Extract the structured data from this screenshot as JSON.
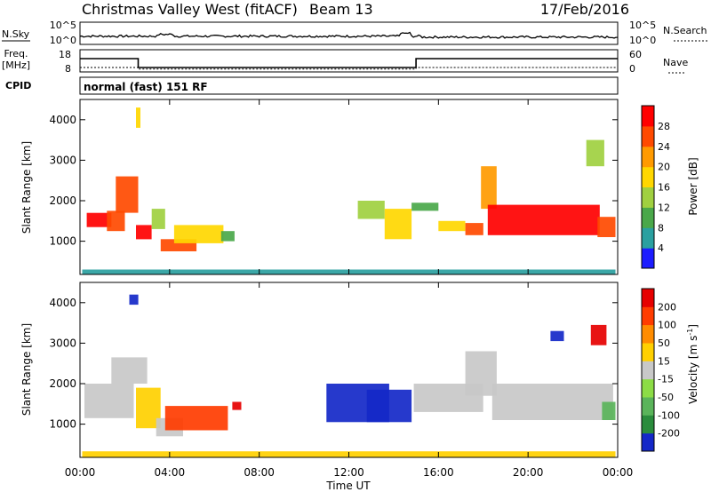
{
  "header": {
    "title": "Christmas Valley West (fitACF)",
    "beam": "Beam 13",
    "date": "17/Feb/2016"
  },
  "strip_labels": {
    "nsky": "N.Sky",
    "nsky_ticks": [
      "10^5",
      "10^0"
    ],
    "nsearch": "N.Search",
    "nsearch_ticks": [
      "10^5",
      "10^0"
    ],
    "freq_lines": [
      "Freq.",
      "[MHz]"
    ],
    "freq_ticks": [
      "18",
      "8"
    ],
    "nave": "Nave",
    "nave_ticks": [
      "60",
      "0"
    ],
    "cpid": "CPID",
    "cpid_text": "normal (fast) 151 RF"
  },
  "chart_data": [
    {
      "type": "line",
      "name_left": "N.Sky",
      "name_right": "N.Search",
      "x_range_hours": [
        0,
        24
      ],
      "scale": "log",
      "ylim_left": [
        "10^0",
        "10^5"
      ],
      "ylim_right": [
        "10^0",
        "10^5"
      ]
    },
    {
      "type": "line",
      "ylabel_left": "Freq. [MHz]",
      "ylabel_right": "Nave",
      "ylim_left": [
        8,
        18
      ],
      "ylim_right": [
        0,
        60
      ],
      "freq_steps": [
        {
          "x": 0,
          "y": 14
        },
        {
          "x": 2.6,
          "y": 14
        },
        {
          "x": 2.6,
          "y": 10
        },
        {
          "x": 15.0,
          "y": 10
        },
        {
          "x": 15.0,
          "y": 14
        },
        {
          "x": 24,
          "y": 14
        }
      ],
      "nave_steps": [
        {
          "x": 0,
          "y": 12
        },
        {
          "x": 2.6,
          "y": 12
        },
        {
          "x": 2.6,
          "y": 8
        },
        {
          "x": 15.0,
          "y": 8
        },
        {
          "x": 15.0,
          "y": 12
        },
        {
          "x": 24,
          "y": 12
        }
      ]
    },
    {
      "type": "heatmap",
      "title": "Power",
      "ylabel": "Slant Range [km]",
      "yticks": [
        "1000",
        "2000",
        "3000",
        "4000"
      ],
      "ylim": [
        180,
        4500
      ],
      "xlim": [
        0,
        24
      ],
      "colorbar_label": "Power [dB]",
      "colorbar_ticks": [
        "28",
        "24",
        "20",
        "16",
        "12",
        "8",
        "4"
      ],
      "colors": [
        "#1c1cff",
        "#2aa0a0",
        "#4aa84a",
        "#a0d040",
        "#ffd700",
        "#ff9a00",
        "#ff4a00",
        "#ff0000"
      ],
      "regions": [
        {
          "x0": 0.3,
          "x1": 1.4,
          "y0": 1350,
          "y1": 1700,
          "c": 7
        },
        {
          "x0": 1.2,
          "x1": 2.0,
          "y0": 1250,
          "y1": 1750,
          "c": 6
        },
        {
          "x0": 1.6,
          "x1": 2.6,
          "y0": 1700,
          "y1": 2600,
          "c": 6
        },
        {
          "x0": 2.5,
          "x1": 3.2,
          "y0": 1050,
          "y1": 1400,
          "c": 7
        },
        {
          "x0": 3.2,
          "x1": 3.8,
          "y0": 1300,
          "y1": 1800,
          "c": 3
        },
        {
          "x0": 3.6,
          "x1": 5.2,
          "y0": 750,
          "y1": 1050,
          "c": 6
        },
        {
          "x0": 4.2,
          "x1": 6.4,
          "y0": 950,
          "y1": 1400,
          "c": 4
        },
        {
          "x0": 6.3,
          "x1": 6.9,
          "y0": 1000,
          "y1": 1250,
          "c": 2
        },
        {
          "x0": 12.4,
          "x1": 13.6,
          "y0": 1550,
          "y1": 2000,
          "c": 3
        },
        {
          "x0": 13.6,
          "x1": 14.8,
          "y0": 1050,
          "y1": 1800,
          "c": 4
        },
        {
          "x0": 14.8,
          "x1": 16.0,
          "y0": 1750,
          "y1": 1950,
          "c": 2
        },
        {
          "x0": 16.0,
          "x1": 17.2,
          "y0": 1250,
          "y1": 1500,
          "c": 4
        },
        {
          "x0": 17.2,
          "x1": 18.0,
          "y0": 1150,
          "y1": 1450,
          "c": 6
        },
        {
          "x0": 17.9,
          "x1": 18.6,
          "y0": 1800,
          "y1": 2850,
          "c": 5
        },
        {
          "x0": 18.2,
          "x1": 23.2,
          "y0": 1150,
          "y1": 1900,
          "c": 7
        },
        {
          "x0": 23.1,
          "x1": 23.9,
          "y0": 1100,
          "y1": 1600,
          "c": 6
        },
        {
          "x0": 22.6,
          "x1": 23.4,
          "y0": 2850,
          "y1": 3500,
          "c": 3
        },
        {
          "x0": 2.5,
          "x1": 2.7,
          "y0": 3800,
          "y1": 4300,
          "c": 4
        },
        {
          "x0": 0.1,
          "x1": 23.9,
          "y0": 180,
          "y1": 300,
          "c": 1
        }
      ]
    },
    {
      "type": "heatmap",
      "title": "Velocity",
      "ylabel": "Slant Range [km]",
      "yticks": [
        "1000",
        "2000",
        "3000",
        "4000"
      ],
      "ylim": [
        180,
        4500
      ],
      "xlim": [
        0,
        24
      ],
      "xlabel": "Time UT",
      "xticks": [
        "00:00",
        "04:00",
        "08:00",
        "12:00",
        "16:00",
        "20:00",
        "00:00"
      ],
      "colorbar_label": "Velocity [m s",
      "colorbar_sup": "-1",
      "colorbar_label_tail": "]",
      "colorbar_ticks": [
        "200",
        "100",
        "50",
        "15",
        "-15",
        "-50",
        "-100",
        "-200"
      ],
      "colors": [
        "#1428c8",
        "#2a8c3c",
        "#5ab45a",
        "#8cdc46",
        "#c8c8c8",
        "#ffd000",
        "#ff8c00",
        "#ff3c00",
        "#e60000"
      ],
      "regions": [
        {
          "x0": 0.2,
          "x1": 2.4,
          "y0": 1150,
          "y1": 2000,
          "c": 4
        },
        {
          "x0": 1.4,
          "x1": 3.0,
          "y0": 2000,
          "y1": 2650,
          "c": 4
        },
        {
          "x0": 2.5,
          "x1": 3.6,
          "y0": 900,
          "y1": 1900,
          "c": 5
        },
        {
          "x0": 3.4,
          "x1": 4.6,
          "y0": 700,
          "y1": 1150,
          "c": 4
        },
        {
          "x0": 3.8,
          "x1": 6.6,
          "y0": 850,
          "y1": 1450,
          "c": 7
        },
        {
          "x0": 6.8,
          "x1": 7.2,
          "y0": 1350,
          "y1": 1550,
          "c": 8
        },
        {
          "x0": 11.0,
          "x1": 13.8,
          "y0": 1050,
          "y1": 2000,
          "c": 0
        },
        {
          "x0": 12.8,
          "x1": 14.8,
          "y0": 1050,
          "y1": 1850,
          "c": 0
        },
        {
          "x0": 14.9,
          "x1": 18.0,
          "y0": 1300,
          "y1": 2000,
          "c": 4
        },
        {
          "x0": 17.2,
          "x1": 18.6,
          "y0": 1700,
          "y1": 2800,
          "c": 4
        },
        {
          "x0": 18.4,
          "x1": 23.8,
          "y0": 1100,
          "y1": 2000,
          "c": 4
        },
        {
          "x0": 23.3,
          "x1": 23.9,
          "y0": 1100,
          "y1": 1550,
          "c": 2
        },
        {
          "x0": 22.8,
          "x1": 23.5,
          "y0": 2950,
          "y1": 3450,
          "c": 8
        },
        {
          "x0": 21.0,
          "x1": 21.6,
          "y0": 3050,
          "y1": 3300,
          "c": 0
        },
        {
          "x0": 2.2,
          "x1": 2.6,
          "y0": 3950,
          "y1": 4200,
          "c": 0
        },
        {
          "x0": 0.1,
          "x1": 23.9,
          "y0": 180,
          "y1": 330,
          "c": 5
        }
      ]
    }
  ]
}
